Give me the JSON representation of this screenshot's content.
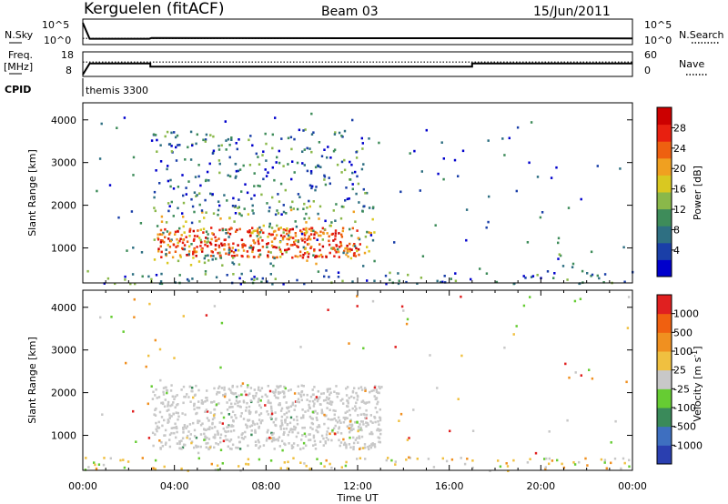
{
  "header": {
    "site": "Kerguelen (fitACF)",
    "beam": "Beam 03",
    "date": "15/Jun/2011"
  },
  "chart_data": [
    {
      "type": "line",
      "panel": "noise",
      "left_label": "N.Sky",
      "left_ticks": [
        "10^5",
        "10^0"
      ],
      "right_label": "N.Search",
      "right_ticks": [
        "10^5",
        "10^0"
      ],
      "series": [
        {
          "style": "solid",
          "x": [
            0.0,
            0.3,
            2.9,
            3.0,
            24.0
          ],
          "y": [
            5,
            1,
            1,
            1.2,
            1.1
          ]
        },
        {
          "style": "dotted",
          "x": [
            0.0,
            24.0
          ],
          "y": [
            1.1,
            1.1
          ]
        }
      ]
    },
    {
      "type": "line",
      "panel": "frequency",
      "left_label": "Freq.",
      "left_unit": "[MHz]",
      "left_ticks": [
        "18",
        "8"
      ],
      "right_label": "Nave",
      "right_ticks": [
        "60",
        "0"
      ],
      "series": [
        {
          "style": "solid",
          "x": [
            0.0,
            0.3,
            2.95,
            2.95,
            17.0,
            17.0,
            24.0
          ],
          "y": [
            8,
            13.3,
            13.3,
            11.8,
            11.8,
            13.3,
            13.3
          ]
        },
        {
          "style": "dotted",
          "x": [
            0.0,
            24.0
          ],
          "y": [
            14.0,
            14.0
          ]
        }
      ]
    },
    {
      "type": "text",
      "panel": "cpid",
      "label": "CPID",
      "values": [
        "themis 3300"
      ]
    },
    {
      "type": "heatmap",
      "panel": "power",
      "ylabel": "Slant Range [km]",
      "xlim": [
        0,
        24
      ],
      "ylim": [
        180,
        4400
      ],
      "yticks": [
        1000,
        2000,
        3000,
        4000
      ],
      "colorbar": {
        "label": "Power [dB]",
        "ticks": [
          "28",
          "24",
          "20",
          "16",
          "12",
          "8",
          "4"
        ],
        "colors": [
          "#0000cc",
          "#1a3fa8",
          "#2e6f82",
          "#3e8c5a",
          "#8ab84a",
          "#d9c821",
          "#f0a020",
          "#ee6010",
          "#e82010",
          "#cc0000"
        ]
      },
      "regions": [
        {
          "x": [
            3.2,
            12.1
          ],
          "y": [
            800,
            1500
          ],
          "level": "high"
        },
        {
          "x": [
            3.0,
            12.7
          ],
          "y": [
            600,
            2000
          ],
          "level": "medium"
        },
        {
          "x": [
            3.0,
            12.5
          ],
          "y": [
            1800,
            3800
          ],
          "level": "low"
        },
        {
          "x": [
            0.0,
            24.0
          ],
          "y": [
            180,
            500
          ],
          "level": "low"
        },
        {
          "x": [
            20.5,
            21.5
          ],
          "y": [
            600,
            900
          ],
          "level": "low"
        }
      ]
    },
    {
      "type": "heatmap",
      "panel": "velocity",
      "ylabel": "Slant Range [km]",
      "xlabel": "Time UT",
      "xlim": [
        0,
        24
      ],
      "ylim": [
        180,
        4400
      ],
      "yticks": [
        1000,
        2000,
        3000,
        4000
      ],
      "xticks": [
        "00:00",
        "04:00",
        "08:00",
        "12:00",
        "16:00",
        "20:00",
        "00:00"
      ],
      "colorbar": {
        "label": "Velocity [m s-1]",
        "ticks": [
          "1000",
          "500",
          "100",
          "25",
          "-25",
          "-100",
          "-500",
          "-1000"
        ],
        "colors": [
          "#2a3fb0",
          "#3e6fc0",
          "#3a8a5a",
          "#66cc33",
          "#c8c8c8",
          "#f0c040",
          "#f09020",
          "#f06010",
          "#e02020"
        ]
      },
      "regions": [
        {
          "x": [
            3.0,
            13.0
          ],
          "y": [
            700,
            2200
          ],
          "level": "ground-scatter"
        },
        {
          "x": [
            11.2,
            12.3
          ],
          "y": [
            700,
            1400
          ],
          "level": "negative"
        },
        {
          "x": [
            0.0,
            24.0
          ],
          "y": [
            180,
            500
          ],
          "level": "mixed"
        }
      ]
    }
  ]
}
